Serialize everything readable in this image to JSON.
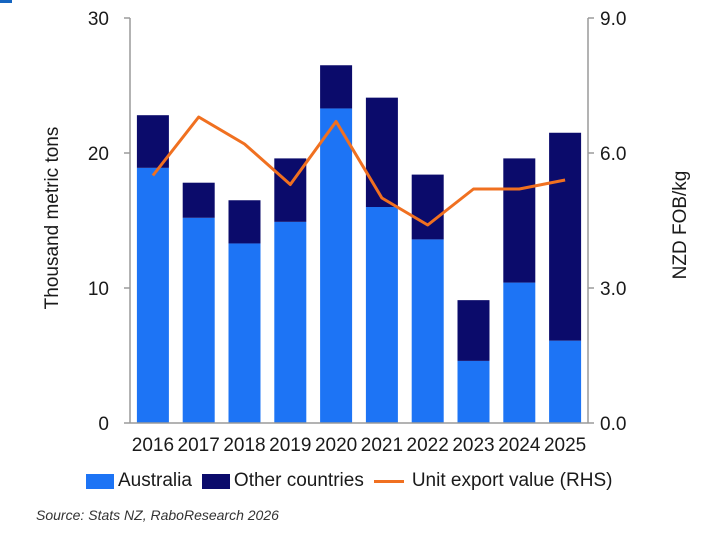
{
  "colors": {
    "australia": "#1d74f5",
    "other": "#0b0b6b",
    "line": "#f07020",
    "axis": "#9a9a9a",
    "accent": "#1565c0"
  },
  "chart_data": {
    "type": "bar",
    "stacked": true,
    "categories": [
      "2016",
      "2017",
      "2018",
      "2019",
      "2020",
      "2021",
      "2022",
      "2023",
      "2024",
      "2025"
    ],
    "series": [
      {
        "name": "Australia",
        "type": "bar",
        "axis": "left",
        "values": [
          18.9,
          15.2,
          13.3,
          14.9,
          23.3,
          16.0,
          13.6,
          4.6,
          10.4,
          6.1
        ]
      },
      {
        "name": "Other countries",
        "type": "bar",
        "axis": "left",
        "values": [
          3.9,
          2.6,
          3.2,
          4.7,
          3.2,
          8.1,
          4.8,
          4.5,
          9.2,
          15.4
        ]
      },
      {
        "name": "Unit export value (RHS)",
        "type": "line",
        "axis": "right",
        "values": [
          5.5,
          6.8,
          6.2,
          5.3,
          6.7,
          5.0,
          4.4,
          5.2,
          5.2,
          5.4
        ]
      }
    ],
    "ylabel": "Thousand metric tons",
    "ylim": [
      0,
      30
    ],
    "yticks": [
      "0",
      "10",
      "20",
      "30"
    ],
    "y2label": "NZD FOB/kg",
    "y2lim": [
      0,
      9
    ],
    "y2ticks": [
      "0.0",
      "3.0",
      "6.0",
      "9.0"
    ],
    "grid": false,
    "legend_position": "bottom"
  },
  "source": {
    "label": "Source:",
    "text": "Stats NZ, RaboResearch 2026"
  }
}
